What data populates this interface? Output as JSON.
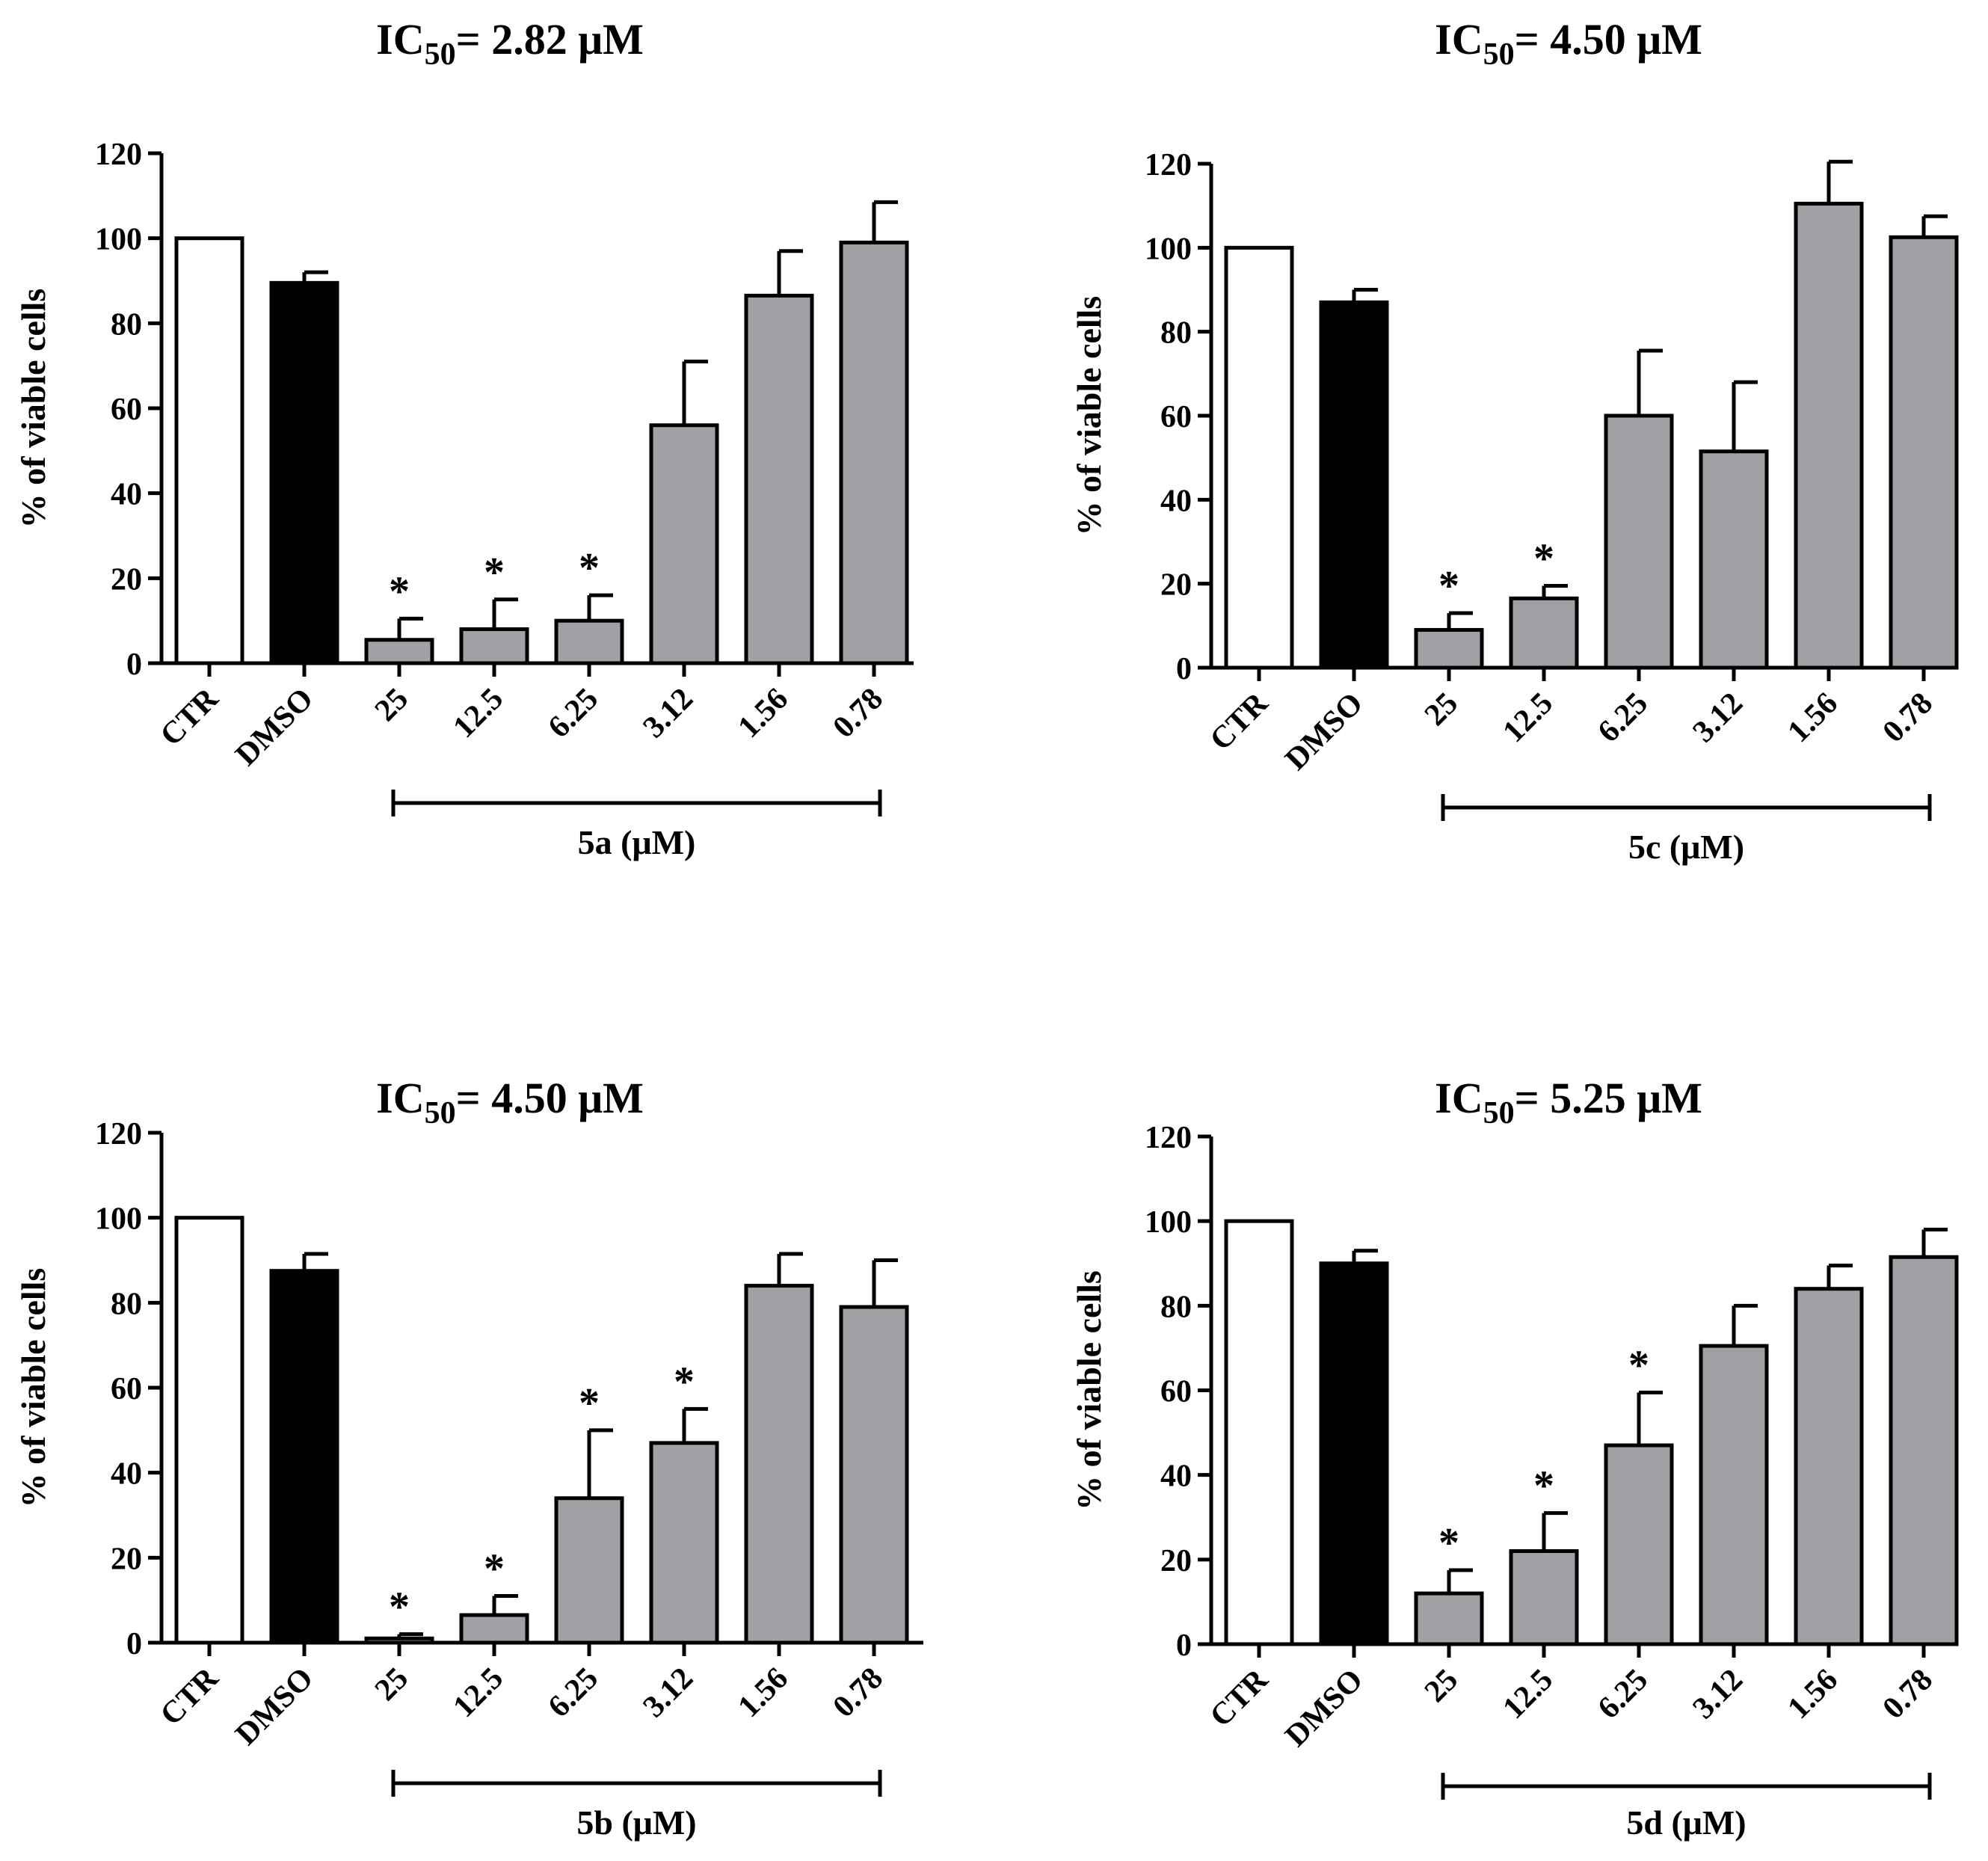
{
  "chart_data": [
    {
      "type": "bar",
      "title": {
        "prefix": "IC",
        "sub": "50",
        "suffix": "= 2.82  μM"
      },
      "ylabel": "% of viable cells",
      "ylim": [
        0,
        120
      ],
      "yticks": [
        "0",
        "20",
        "40",
        "60",
        "80",
        "100",
        "120"
      ],
      "categories": [
        "CTR",
        "DMSO",
        "25",
        "12.5",
        "6.25",
        "3.12",
        "1.56",
        "0.78"
      ],
      "values": [
        100,
        89.5,
        5.5,
        8,
        10,
        56,
        86.5,
        99
      ],
      "errors": [
        0,
        2.5,
        5,
        7,
        6,
        15,
        10.5,
        9.5
      ],
      "significant": [
        false,
        false,
        true,
        true,
        true,
        false,
        false,
        false
      ],
      "bar_colors": [
        "#ffffff",
        "#000000",
        "#a0a1a5",
        "#a0a1a5",
        "#a0a1a5",
        "#a0a1a5",
        "#a0a1a5",
        "#a0a1a5"
      ],
      "group_label": "5a (μM)",
      "group_range": [
        2,
        7
      ]
    },
    {
      "type": "bar",
      "title": {
        "prefix": "IC",
        "sub": "50",
        "suffix": "= 4.50  μM"
      },
      "ylabel": "% of viable cells",
      "ylim": [
        0,
        120
      ],
      "yticks": [
        "0",
        "20",
        "40",
        "60",
        "80",
        "100",
        "120"
      ],
      "categories": [
        "CTR",
        "DMSO",
        "25",
        "12.5",
        "6.25",
        "3.12",
        "1.56",
        "0.78"
      ],
      "values": [
        100,
        87,
        9,
        16.5,
        60,
        51.5,
        110.5,
        102.5
      ],
      "errors": [
        0,
        3,
        4,
        3,
        15.5,
        16.5,
        10,
        5
      ],
      "significant": [
        false,
        false,
        true,
        true,
        false,
        false,
        false,
        false
      ],
      "bar_colors": [
        "#ffffff",
        "#000000",
        "#a0a1a5",
        "#a0a1a5",
        "#a0a1a5",
        "#a0a1a5",
        "#a0a1a5",
        "#a0a1a5"
      ],
      "group_label": "5c (μM)",
      "group_range": [
        2,
        7
      ]
    },
    {
      "type": "bar",
      "title": {
        "prefix": "IC",
        "sub": "50",
        "suffix": "= 4.50  μM"
      },
      "ylabel": "% of viable cells",
      "ylim": [
        0,
        120
      ],
      "yticks": [
        "0",
        "20",
        "40",
        "60",
        "80",
        "100",
        "120"
      ],
      "categories": [
        "CTR",
        "DMSO",
        "25",
        "12.5",
        "6.25",
        "3.12",
        "1.56",
        "0.78"
      ],
      "values": [
        100,
        87.5,
        1,
        6.5,
        34,
        47,
        84,
        79
      ],
      "errors": [
        0,
        4,
        1,
        4.5,
        16,
        8,
        7.5,
        11
      ],
      "significant": [
        false,
        false,
        true,
        true,
        true,
        true,
        false,
        false
      ],
      "bar_colors": [
        "#ffffff",
        "#000000",
        "#a0a1a5",
        "#a0a1a5",
        "#a0a1a5",
        "#a0a1a5",
        "#a0a1a5",
        "#a0a1a5"
      ],
      "group_label": "5b (μM)",
      "group_range": [
        2,
        7
      ]
    },
    {
      "type": "bar",
      "title": {
        "prefix": "IC",
        "sub": "50",
        "suffix": "= 5.25   μM"
      },
      "ylabel": "% of viable cells",
      "ylim": [
        0,
        120
      ],
      "yticks": [
        "0",
        "20",
        "40",
        "60",
        "80",
        "100",
        "120"
      ],
      "categories": [
        "CTR",
        "DMSO",
        "25",
        "12.5",
        "6.25",
        "3.12",
        "1.56",
        "0.78"
      ],
      "values": [
        100,
        90,
        12,
        22,
        47,
        70.5,
        84,
        91.5
      ],
      "errors": [
        0,
        3,
        5.5,
        9,
        12.5,
        9.5,
        5.5,
        6.5
      ],
      "significant": [
        false,
        false,
        true,
        true,
        true,
        false,
        false,
        false
      ],
      "bar_colors": [
        "#ffffff",
        "#000000",
        "#a0a1a5",
        "#a0a1a5",
        "#a0a1a5",
        "#a0a1a5",
        "#a0a1a5",
        "#a0a1a5"
      ],
      "group_label": "5d (μM)",
      "group_range": [
        2,
        7
      ]
    }
  ],
  "marker": "*"
}
